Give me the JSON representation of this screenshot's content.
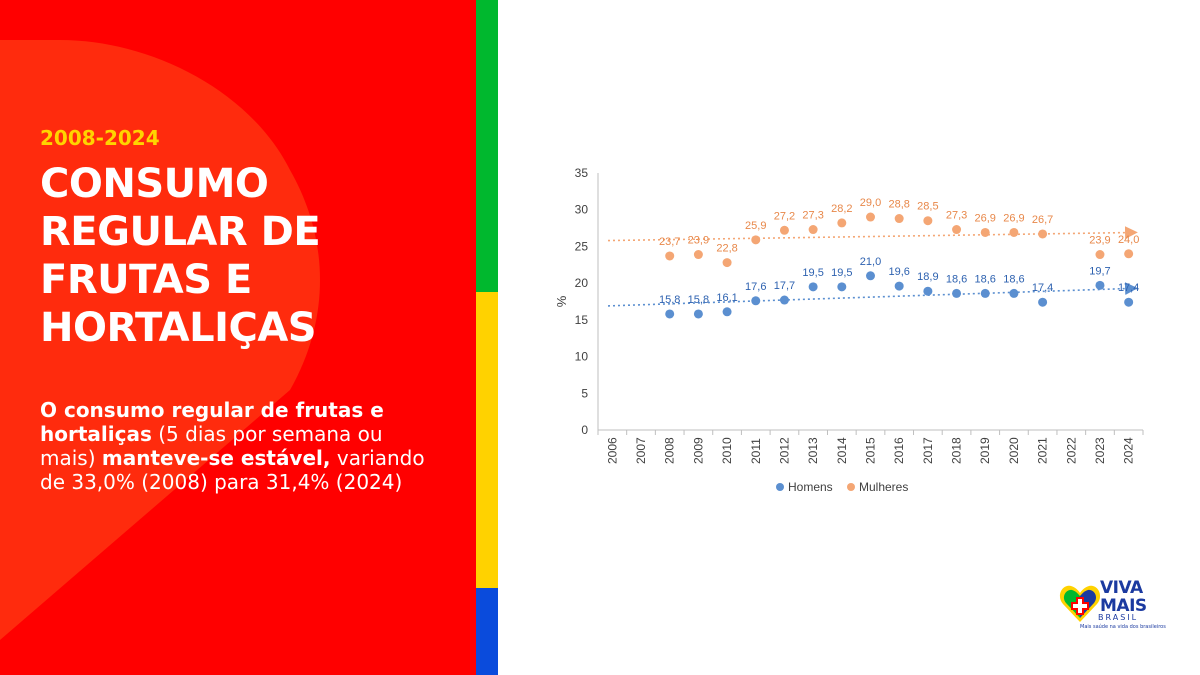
{
  "slide": {
    "period": "2008-2024",
    "title_lines": [
      "CONSUMO",
      "REGULAR DE",
      "FRUTAS E",
      "HORTALIÇAS"
    ],
    "description": {
      "part1": "O consumo regular de frutas e hortaliças",
      "part2": " (5 dias por semana ou mais) ",
      "part3": "manteve-se estável,",
      "part4": " variando de 33,0% (2008) para 31,4% (2024)"
    }
  },
  "logo": {
    "line1": "VIVA",
    "line2": "MAIS",
    "line3": "BRASIL",
    "tagline": "Mais saúde na vida dos brasileiros",
    "colors": {
      "blue": "#1b3aa0",
      "green": "#00b82e",
      "yellow": "#ffd200",
      "red": "#ff0000"
    }
  },
  "colors": {
    "left_panel": "#ff0000",
    "period": "#ffd400",
    "stripe_green": "#00b82e",
    "stripe_yellow": "#ffd200",
    "stripe_blue": "#0a4bdc"
  },
  "chart_data": {
    "type": "scatter",
    "x": [
      "2006",
      "2007",
      "2008",
      "2009",
      "2010",
      "2011",
      "2012",
      "2013",
      "2014",
      "2015",
      "2016",
      "2017",
      "2018",
      "2019",
      "2020",
      "2021",
      "2022",
      "2023",
      "2024"
    ],
    "ylabel": "%",
    "ylim": [
      0,
      35
    ],
    "yticks": [
      0,
      5,
      10,
      15,
      20,
      25,
      30,
      35
    ],
    "grid": false,
    "legend_position": "bottom",
    "series": [
      {
        "name": "Homens",
        "color": "#5b8fd0",
        "label_color": "#2e62b0",
        "values": [
          null,
          null,
          15.8,
          15.8,
          16.1,
          17.6,
          17.7,
          19.5,
          19.5,
          21.0,
          19.6,
          18.9,
          18.6,
          18.6,
          18.6,
          17.4,
          null,
          19.7,
          17.4
        ],
        "labels": [
          null,
          null,
          "15,8",
          "15,8",
          "16,1",
          "17,6",
          "17,7",
          "19,5",
          "19,5",
          "21,0",
          "19,6",
          "18,9",
          "18,6",
          "18,6",
          "18,6",
          "17,4",
          null,
          "19,7",
          "17,4"
        ],
        "trend": [
          16.9,
          19.3
        ]
      },
      {
        "name": "Mulheres",
        "color": "#f4a674",
        "label_color": "#e8884a",
        "values": [
          null,
          null,
          23.7,
          23.9,
          22.8,
          25.9,
          27.2,
          27.3,
          28.2,
          29.0,
          28.8,
          28.5,
          27.3,
          26.9,
          26.9,
          26.7,
          null,
          23.9,
          24.0
        ],
        "labels": [
          null,
          null,
          "23,7",
          "23,9",
          "22,8",
          "25,9",
          "27,2",
          "27,3",
          "28,2",
          "29,0",
          "28,8",
          "28,5",
          "27,3",
          "26,9",
          "26,9",
          "26,7",
          null,
          "23,9",
          "24,0"
        ],
        "trend": [
          25.8,
          26.9
        ]
      }
    ]
  }
}
